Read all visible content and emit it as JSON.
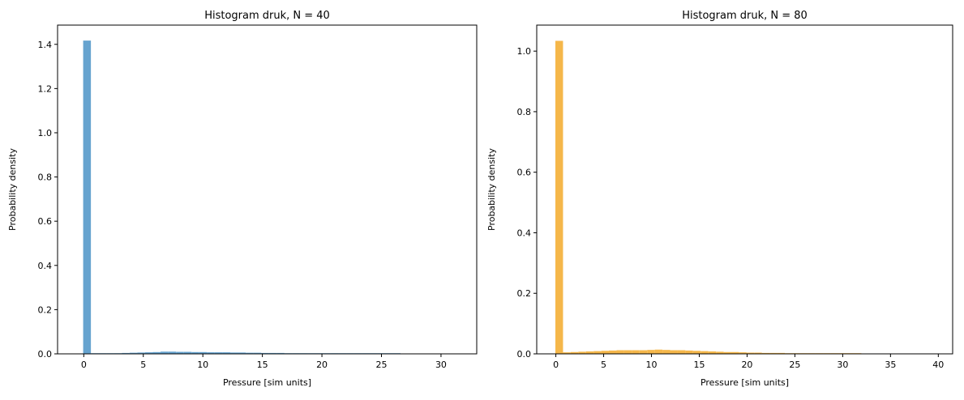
{
  "chart_data": [
    {
      "type": "bar",
      "title": "Histogram druk, N = 40",
      "xlabel": "Pressure [sim units]",
      "ylabel": "Probability density",
      "xlim": [
        -2.2,
        33.0
      ],
      "ylim": [
        0,
        1.487
      ],
      "xticks": [
        0,
        5,
        10,
        15,
        20,
        25,
        30
      ],
      "yticks": [
        0.0,
        0.2,
        0.4,
        0.6,
        0.8,
        1.0,
        1.2,
        1.4
      ],
      "ytick_labels": [
        "0.0",
        "0.2",
        "0.4",
        "0.6",
        "0.8",
        "1.0",
        "1.2",
        "1.4"
      ],
      "bin_width": 0.65,
      "bins_start": -0.05,
      "values": [
        1.417,
        0.002,
        0.002,
        0.002,
        0.003,
        0.004,
        0.005,
        0.006,
        0.007,
        0.008,
        0.01,
        0.01,
        0.009,
        0.009,
        0.008,
        0.008,
        0.007,
        0.007,
        0.007,
        0.006,
        0.006,
        0.005,
        0.005,
        0.004,
        0.004,
        0.004,
        0.003,
        0.003,
        0.003,
        0.002,
        0.002,
        0.002,
        0.003,
        0.001,
        0.001,
        0.001,
        0.001,
        0.001,
        0.001,
        0.001,
        0.001,
        0.0,
        0.0,
        0.0,
        0.0,
        0.0,
        0.0,
        0.0,
        0.0,
        0.0
      ],
      "color": "#66a3cf",
      "grid": false
    },
    {
      "type": "bar",
      "title": "Histogram druk, N = 80",
      "xlabel": "Pressure [sim units]",
      "ylabel": "Probability density",
      "xlim": [
        -2.0,
        41.5
      ],
      "ylim": [
        0,
        1.086
      ],
      "xticks": [
        0,
        5,
        10,
        15,
        20,
        25,
        30,
        35,
        40
      ],
      "yticks": [
        0.0,
        0.2,
        0.4,
        0.6,
        0.8,
        1.0
      ],
      "ytick_labels": [
        "0.0",
        "0.2",
        "0.4",
        "0.6",
        "0.8",
        "1.0"
      ],
      "bin_width": 0.8,
      "bins_start": -0.05,
      "values": [
        1.034,
        0.005,
        0.006,
        0.007,
        0.008,
        0.009,
        0.01,
        0.011,
        0.012,
        0.012,
        0.012,
        0.012,
        0.013,
        0.014,
        0.013,
        0.012,
        0.012,
        0.011,
        0.01,
        0.009,
        0.008,
        0.007,
        0.006,
        0.006,
        0.005,
        0.004,
        0.004,
        0.003,
        0.003,
        0.003,
        0.002,
        0.002,
        0.002,
        0.002,
        0.001,
        0.001,
        0.001,
        0.001,
        0.001,
        0.001,
        0.0,
        0.0,
        0.0,
        0.0,
        0.0,
        0.0,
        0.0,
        0.0,
        0.0,
        0.0
      ],
      "color": "#f5b74a",
      "grid": false
    }
  ]
}
